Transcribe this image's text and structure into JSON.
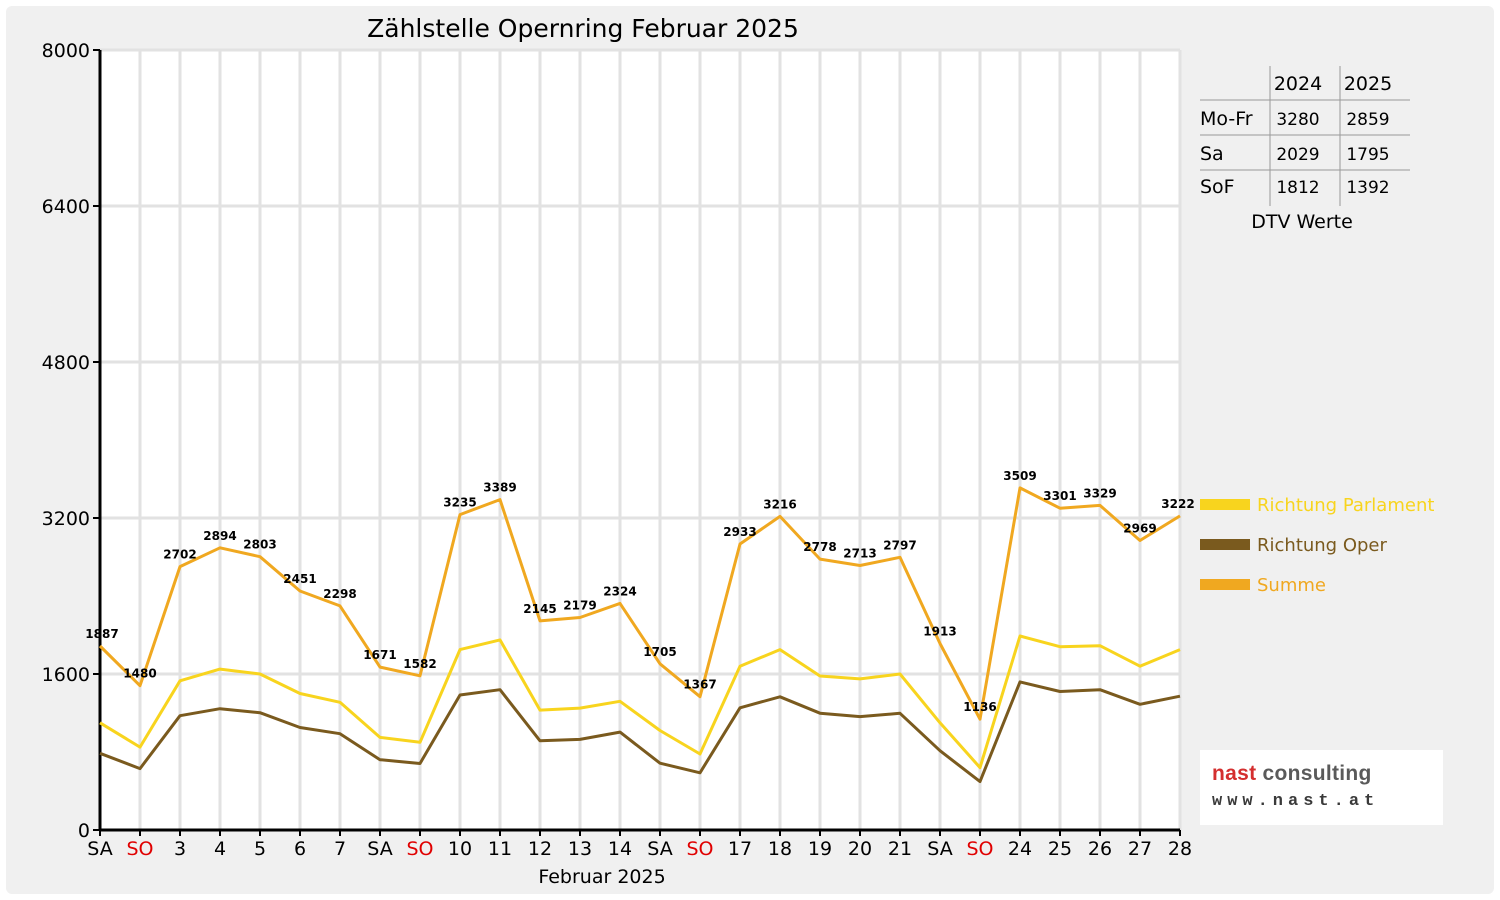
{
  "chart_data": {
    "type": "line",
    "title": "Zählstelle Opernring Februar 2025",
    "xlabel": "Februar 2025",
    "ylabel": "",
    "ylim": [
      0,
      8000
    ],
    "yticks": [
      "0",
      "1600",
      "3200",
      "4800",
      "6400",
      "8000"
    ],
    "grid": true,
    "legend_position": "right",
    "categories": [
      "SA",
      "SO",
      "3",
      "4",
      "5",
      "6",
      "7",
      "SA",
      "SO",
      "10",
      "11",
      "12",
      "13",
      "14",
      "SA",
      "SO",
      "17",
      "18",
      "19",
      "20",
      "21",
      "SA",
      "SO",
      "24",
      "25",
      "26",
      "27",
      "28"
    ],
    "category_colors": [
      "#000000",
      "#e00000",
      "#000000",
      "#000000",
      "#000000",
      "#000000",
      "#000000",
      "#000000",
      "#e00000",
      "#000000",
      "#000000",
      "#000000",
      "#000000",
      "#000000",
      "#000000",
      "#e00000",
      "#000000",
      "#000000",
      "#000000",
      "#000000",
      "#000000",
      "#000000",
      "#e00000",
      "#000000",
      "#000000",
      "#000000",
      "#000000",
      "#000000"
    ],
    "series": [
      {
        "name": "Richtung Parlament",
        "color": "#f8d41e",
        "values": [
          1100,
          850,
          1530,
          1650,
          1600,
          1400,
          1310,
          950,
          900,
          1850,
          1950,
          1230,
          1250,
          1320,
          1020,
          780,
          1680,
          1850,
          1580,
          1550,
          1600,
          1100,
          640,
          1990,
          1880,
          1890,
          1680,
          1850
        ]
      },
      {
        "name": "Richtung Oper",
        "color": "#7a5a1e",
        "values": [
          787,
          630,
          1172,
          1244,
          1203,
          1051,
          988,
          721,
          682,
          1385,
          1439,
          915,
          929,
          1004,
          685,
          587,
          1253,
          1366,
          1198,
          1163,
          1197,
          813,
          496,
          1519,
          1421,
          1439,
          1289,
          1372
        ]
      },
      {
        "name": "Summe",
        "color": "#f0a820",
        "values": [
          1887,
          1480,
          2702,
          2894,
          2803,
          2451,
          2298,
          1671,
          1582,
          3235,
          3389,
          2145,
          2179,
          2324,
          1705,
          1367,
          2933,
          3216,
          2778,
          2713,
          2797,
          1913,
          1136,
          3509,
          3301,
          3329,
          2969,
          3222
        ]
      }
    ],
    "data_labels": [
      "1887",
      "1480",
      "2702",
      "2894",
      "2803",
      "2451",
      "2298",
      "1671",
      "1582",
      "3235",
      "3389",
      "2145",
      "2179",
      "2324",
      "1705",
      "1367",
      "2933",
      "3216",
      "2778",
      "2713",
      "2797",
      "1913",
      "1136",
      "3509",
      "3301",
      "3329",
      "2969",
      "3222"
    ]
  },
  "dtv_table": {
    "headers": [
      "",
      "2024",
      "2025"
    ],
    "rows": [
      {
        "label": "Mo-Fr",
        "v2024": "3280",
        "v2025": "2859"
      },
      {
        "label": "Sa",
        "v2024": "2029",
        "v2025": "1795"
      },
      {
        "label": "SoF",
        "v2024": "1812",
        "v2025": "1392"
      }
    ],
    "caption": "DTV Werte"
  },
  "logo": {
    "name_part1": "nast",
    "name_part2": "consulting",
    "url": "www.nast.at"
  }
}
